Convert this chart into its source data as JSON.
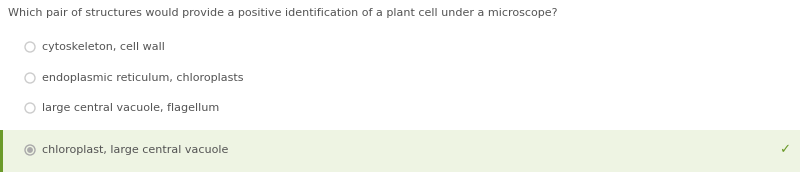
{
  "question": "Which pair of structures would provide a positive identification of a plant cell under a microscope?",
  "options": [
    {
      "text": "cytoskeleton, cell wall",
      "correct": false
    },
    {
      "text": "endoplasmic reticulum, chloroplasts",
      "correct": false
    },
    {
      "text": "large central vacuole, flagellum",
      "correct": false
    },
    {
      "text": "chloroplast, large central vacuole",
      "correct": true
    }
  ],
  "bg_color": "#ffffff",
  "highlight_color": "#eef4e3",
  "border_color": "#6b9a2a",
  "question_color": "#555555",
  "option_color": "#555555",
  "radio_color": "#cccccc",
  "radio_selected_color": "#aaaaaa",
  "check_color": "#6b9a2a",
  "question_fontsize": 8.0,
  "option_fontsize": 8.0,
  "fig_width": 8.0,
  "fig_height": 1.72,
  "dpi": 100
}
